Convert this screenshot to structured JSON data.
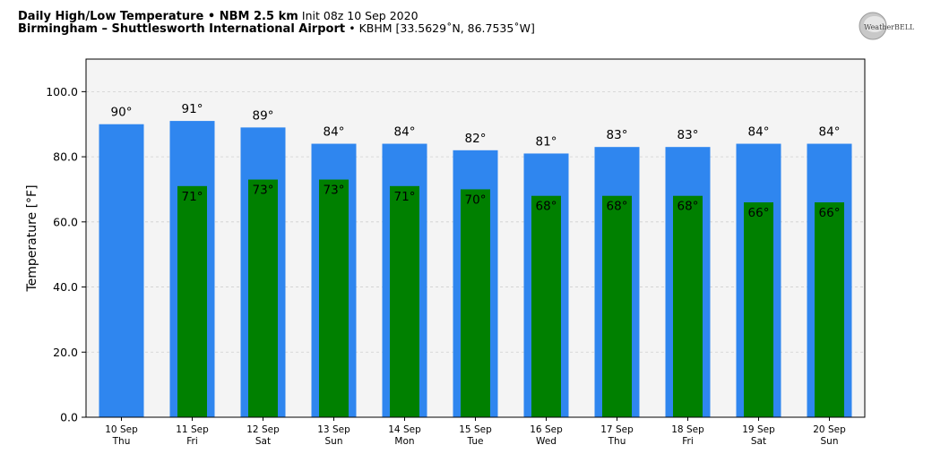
{
  "header": {
    "title": "Daily High/Low Temperature",
    "bullet": "•",
    "model": "NBM 2.5 km",
    "init": "Init 08z 10 Sep 2020",
    "location": "Birmingham – Shuttlesworth International Airport",
    "station": "KBHM [33.5629˚N, 86.7535˚W]"
  },
  "logo": {
    "text": "WeatherBELL",
    "icon": "weatherbell-logo"
  },
  "chart_data": {
    "type": "bar",
    "categories": [
      "10 Sep",
      "11 Sep",
      "12 Sep",
      "13 Sep",
      "14 Sep",
      "15 Sep",
      "16 Sep",
      "17 Sep",
      "18 Sep",
      "19 Sep",
      "20 Sep"
    ],
    "weekdays": [
      "Thu",
      "Fri",
      "Sat",
      "Sun",
      "Mon",
      "Tue",
      "Wed",
      "Thu",
      "Fri",
      "Sat",
      "Sun"
    ],
    "series": [
      {
        "values": [
          90,
          91,
          89,
          84,
          84,
          82,
          81,
          83,
          83,
          84,
          84
        ],
        "color": "#2f86ef",
        "labels": [
          "90°",
          "91°",
          "89°",
          "84°",
          "84°",
          "82°",
          "81°",
          "83°",
          "83°",
          "84°",
          "84°"
        ]
      },
      {
        "values": [
          null,
          71,
          73,
          73,
          71,
          70,
          68,
          68,
          68,
          66,
          66
        ],
        "color": "#008000",
        "labels": [
          "",
          "71°",
          "73°",
          "73°",
          "71°",
          "70°",
          "68°",
          "68°",
          "68°",
          "66°",
          "66°"
        ]
      }
    ],
    "ylabel": "Temperature [°F]",
    "ylim": [
      0,
      110
    ],
    "yticks": [
      "0.0",
      "20.0",
      "40.0",
      "60.0",
      "80.0",
      "100.0"
    ],
    "ytick_values": [
      0,
      20,
      40,
      60,
      80,
      100
    ],
    "grid": true,
    "plot_background": "#f4f4f4"
  }
}
